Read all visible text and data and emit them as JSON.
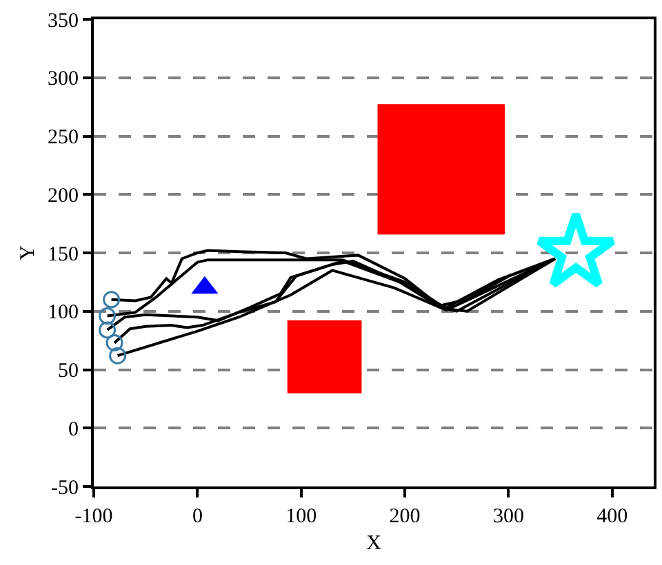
{
  "chart_data": {
    "type": "line",
    "xlabel": "X",
    "ylabel": "Y",
    "xlim": [
      -100,
      440
    ],
    "ylim": [
      -50,
      350
    ],
    "xticks": [
      -100,
      0,
      100,
      200,
      300,
      400
    ],
    "yticks": [
      -50,
      0,
      50,
      100,
      150,
      200,
      250,
      300,
      350
    ],
    "grid": "y",
    "series": [
      {
        "type": "area",
        "color": "#ff0000",
        "x": [
          174,
          296,
          296,
          174,
          174
        ],
        "values": [
          166,
          166,
          277,
          277,
          166
        ]
      },
      {
        "type": "area",
        "color": "#ff0000",
        "x": [
          87,
          158,
          158,
          87,
          87
        ],
        "values": [
          30,
          30,
          92,
          92,
          30
        ]
      },
      {
        "color": "#000000",
        "marker": "none",
        "x": [
          -83,
          -60,
          -45,
          -30,
          -25,
          -15,
          0,
          10,
          40,
          85,
          105,
          155,
          200,
          230,
          240,
          250,
          290,
          345
        ],
        "values": [
          110,
          109,
          112,
          128,
          124,
          145,
          150,
          152,
          151,
          150,
          145,
          148,
          128,
          107,
          103,
          108,
          127,
          145
        ]
      },
      {
        "color": "#000000",
        "marker": "none",
        "x": [
          -87,
          -60,
          -40,
          0,
          10,
          50,
          140,
          200,
          235,
          260,
          300,
          345
        ],
        "values": [
          96,
          99,
          112,
          142,
          144,
          144,
          144,
          125,
          105,
          110,
          130,
          145
        ]
      },
      {
        "color": "#000000",
        "marker": "none",
        "x": [
          -87,
          -70,
          -50,
          0,
          20,
          50,
          80,
          90,
          130,
          150,
          200,
          240,
          260,
          345
        ],
        "values": [
          84,
          95,
          97,
          95,
          92,
          103,
          115,
          129,
          140,
          143,
          123,
          102,
          100,
          145
        ]
      },
      {
        "color": "#000000",
        "marker": "none",
        "x": [
          -80,
          -65,
          -50,
          -25,
          -10,
          5,
          40,
          75,
          95,
          140,
          195,
          235,
          250,
          345
        ],
        "values": [
          73,
          85,
          87,
          88,
          86,
          88,
          99,
          108,
          130,
          143,
          125,
          103,
          100,
          145
        ]
      },
      {
        "color": "#000000",
        "marker": "none",
        "x": [
          -77,
          0,
          40,
          90,
          130,
          150,
          190,
          240,
          345
        ],
        "values": [
          62,
          83,
          95,
          114,
          135,
          130,
          120,
          101,
          145
        ]
      },
      {
        "type": "scatter",
        "color": "#3a7ca5",
        "marker": "circle",
        "x": [
          -83,
          -87,
          -87,
          -80,
          -77
        ],
        "values": [
          110,
          96,
          84,
          73,
          62
        ]
      },
      {
        "type": "scatter",
        "color": "#0000ff",
        "marker": "triangle",
        "x": [
          7
        ],
        "values": [
          120
        ]
      },
      {
        "type": "scatter",
        "color": "#00ffff",
        "marker": "star",
        "x": [
          365
        ],
        "values": [
          150
        ]
      }
    ]
  }
}
